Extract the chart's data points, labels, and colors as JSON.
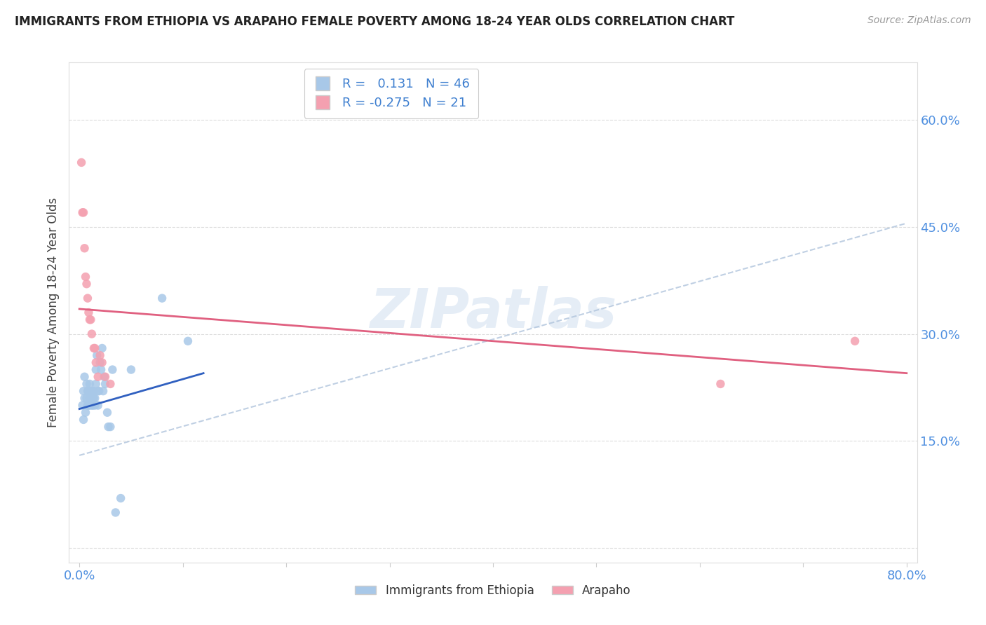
{
  "title": "IMMIGRANTS FROM ETHIOPIA VS ARAPAHO FEMALE POVERTY AMONG 18-24 YEAR OLDS CORRELATION CHART",
  "source_text": "Source: ZipAtlas.com",
  "ylabel": "Female Poverty Among 18-24 Year Olds",
  "watermark": "ZIPatlas",
  "xlim": [
    0.0,
    0.8
  ],
  "ylim": [
    0.0,
    0.65
  ],
  "xticks": [
    0.0,
    0.1,
    0.2,
    0.3,
    0.4,
    0.5,
    0.6,
    0.7,
    0.8
  ],
  "yticks": [
    0.0,
    0.15,
    0.3,
    0.45,
    0.6
  ],
  "xticklabels": [
    "0.0%",
    "",
    "",
    "",
    "",
    "",
    "",
    "",
    "80.0%"
  ],
  "yticklabels": [
    "",
    "15.0%",
    "30.0%",
    "45.0%",
    "60.0%"
  ],
  "legend_r_blue": "0.131",
  "legend_n_blue": "46",
  "legend_r_pink": "-0.275",
  "legend_n_pink": "21",
  "legend_label_blue": "Immigrants from Ethiopia",
  "legend_label_pink": "Arapaho",
  "blue_color": "#a8c8e8",
  "pink_color": "#f4a0b0",
  "blue_line_color": "#3060c0",
  "pink_line_color": "#e06080",
  "blue_dash_color": "#b0c4dc",
  "scatter_size": 80,
  "ethiopia_x": [
    0.003,
    0.004,
    0.004,
    0.005,
    0.005,
    0.006,
    0.007,
    0.007,
    0.008,
    0.008,
    0.009,
    0.009,
    0.01,
    0.01,
    0.01,
    0.011,
    0.011,
    0.012,
    0.012,
    0.013,
    0.013,
    0.014,
    0.014,
    0.015,
    0.015,
    0.016,
    0.016,
    0.017,
    0.018,
    0.018,
    0.019,
    0.02,
    0.021,
    0.022,
    0.023,
    0.024,
    0.025,
    0.027,
    0.028,
    0.03,
    0.032,
    0.035,
    0.04,
    0.05,
    0.08,
    0.105
  ],
  "ethiopia_y": [
    0.2,
    0.18,
    0.22,
    0.21,
    0.24,
    0.19,
    0.21,
    0.23,
    0.2,
    0.22,
    0.2,
    0.22,
    0.21,
    0.2,
    0.23,
    0.22,
    0.21,
    0.2,
    0.22,
    0.21,
    0.2,
    0.22,
    0.21,
    0.21,
    0.2,
    0.23,
    0.25,
    0.27,
    0.2,
    0.22,
    0.22,
    0.26,
    0.25,
    0.28,
    0.22,
    0.24,
    0.23,
    0.19,
    0.17,
    0.17,
    0.25,
    0.05,
    0.07,
    0.25,
    0.35,
    0.29
  ],
  "arapaho_x": [
    0.002,
    0.003,
    0.004,
    0.005,
    0.006,
    0.007,
    0.008,
    0.009,
    0.01,
    0.011,
    0.012,
    0.014,
    0.015,
    0.016,
    0.018,
    0.02,
    0.022,
    0.025,
    0.03,
    0.62,
    0.75
  ],
  "arapaho_y": [
    0.54,
    0.47,
    0.47,
    0.42,
    0.38,
    0.37,
    0.35,
    0.33,
    0.32,
    0.32,
    0.3,
    0.28,
    0.28,
    0.26,
    0.24,
    0.27,
    0.26,
    0.24,
    0.23,
    0.23,
    0.29
  ],
  "blue_line_x0": 0.0,
  "blue_line_y0": 0.195,
  "blue_line_x1": 0.12,
  "blue_line_y1": 0.245,
  "pink_line_x0": 0.0,
  "pink_line_y0": 0.335,
  "pink_line_x1": 0.8,
  "pink_line_y1": 0.245,
  "dash_line_x0": 0.0,
  "dash_line_y0": 0.13,
  "dash_line_x1": 0.8,
  "dash_line_y1": 0.455
}
